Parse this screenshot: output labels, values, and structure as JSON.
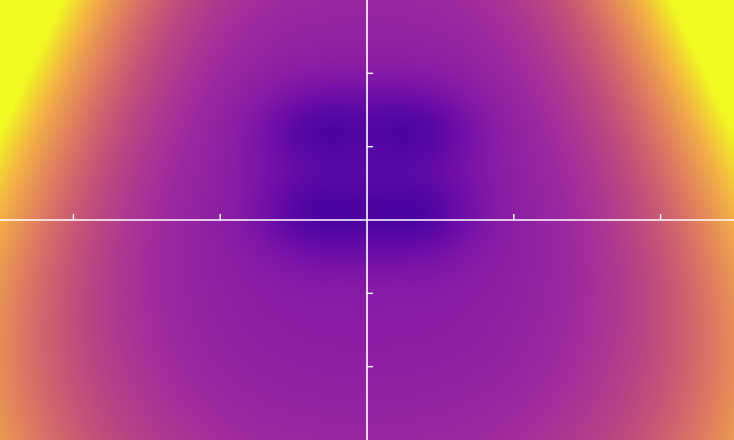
{
  "chart_data": {
    "type": "heatmap",
    "title": "",
    "xlabel": "",
    "ylabel": "",
    "xlim": [
      -2.5,
      2.5
    ],
    "ylim": [
      -1.5,
      1.5
    ],
    "x_ticks": [
      -2,
      -1,
      1,
      2
    ],
    "y_ticks": [
      -1,
      -0.5,
      0.5,
      1
    ],
    "tick_labels_shown": false,
    "colormap": "plasma",
    "axes_color": "#ffffff",
    "value_range": [
      0,
      1
    ],
    "features": [
      {
        "name": "right-upper-lobe-minimum",
        "x": 0.3,
        "y": 0.6,
        "value": 0.02
      },
      {
        "name": "left-upper-lobe-minimum",
        "x": -0.3,
        "y": 0.6,
        "value": 0.02
      },
      {
        "name": "right-lobe-minimum",
        "x": 0.3,
        "y": 0.05,
        "value": 0.0
      },
      {
        "name": "left-lobe-minimum",
        "x": -0.3,
        "y": 0.05,
        "value": 0.0
      },
      {
        "name": "corner-maxima",
        "x": 2.4,
        "y": 1.35,
        "value": 1.0
      }
    ]
  }
}
